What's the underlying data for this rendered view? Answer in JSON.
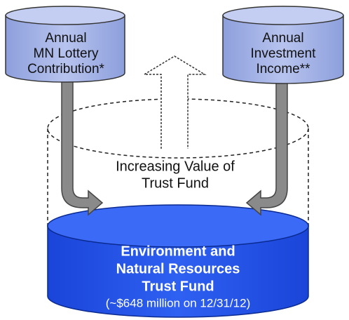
{
  "nodes": [
    {
      "label": [
        "Annual",
        "MN Lottery",
        "Contribution*"
      ]
    },
    {
      "label": [
        "Annual",
        "Investment",
        "Income**"
      ]
    },
    {
      "label": [
        "Increasing Value of",
        "Trust Fund"
      ]
    },
    {
      "label": [
        "Environment and",
        "Natural Resources",
        "Trust Fund",
        "(~$648 million on 12/31/12)"
      ]
    }
  ]
}
